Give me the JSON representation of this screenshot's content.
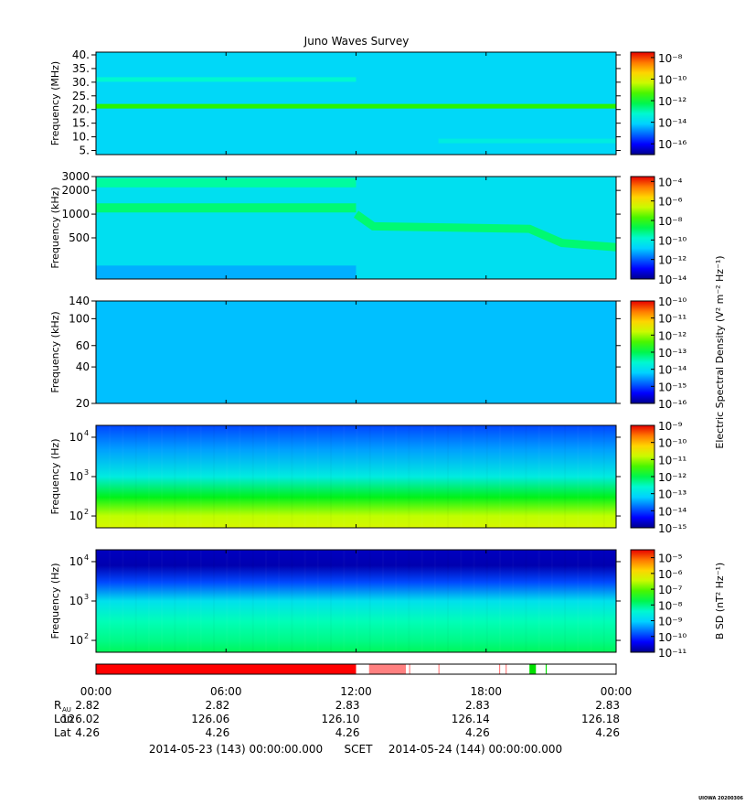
{
  "chart_data": {
    "type": "heatmap",
    "title": "Juno Waves Survey",
    "panels": [
      {
        "id": "hfrh",
        "ylabel": "Frequency (MHz)",
        "yscale": "linear",
        "ylim": [
          3.5,
          41
        ],
        "yticks": [
          "5.",
          "10.",
          "15.",
          "20.",
          "25.",
          "30.",
          "35.",
          "40."
        ],
        "colorbar": {
          "label": "",
          "scale": "log",
          "range_exp": [
            -17,
            -7.5
          ],
          "tick_exps": [
            -8,
            -10,
            -12,
            -14,
            -16
          ]
        },
        "features": [
          {
            "desc": "narrow band",
            "freq": 21.2,
            "level_exp": -11.5
          },
          {
            "desc": "band",
            "freq": 31.0,
            "level_exp": -13.2,
            "t_end": 12.0
          },
          {
            "desc": "faint band after 16:00",
            "freq": 8.5,
            "level_exp": -13.5,
            "t_start": 15.8
          }
        ],
        "background_level_exp": -14.0
      },
      {
        "id": "hfrl",
        "ylabel": "Frequency (kHz)",
        "yscale": "log",
        "ylim": [
          150,
          3000
        ],
        "yticks": [
          "500",
          "1000",
          "2000",
          "3000"
        ],
        "colorbar": {
          "label": "",
          "scale": "log",
          "range_exp": [
            -14,
            -3.5
          ],
          "tick_exps": [
            -4,
            -6,
            -8,
            -10,
            -12,
            -14
          ]
        },
        "features": [
          {
            "desc": "band",
            "freq": 2500,
            "level_exp": -9.3,
            "t_end": 12.0
          },
          {
            "desc": "band",
            "freq": 1200,
            "level_exp": -9.0,
            "t_end": 12.0
          },
          {
            "desc": "descending band",
            "freq_at_12": 1000,
            "freq_at_20": 650,
            "freq_at_24": 380,
            "level_exp": -9.0
          },
          {
            "desc": "low-frequency noise",
            "freq": 170,
            "level_exp": -11.2,
            "t_end": 12.0
          }
        ],
        "background_level_exp": -10.5
      },
      {
        "id": "lfrh",
        "ylabel": "Frequency (kHz)",
        "yscale": "log",
        "ylim": [
          20,
          140
        ],
        "yticks": [
          "20",
          "40",
          "60",
          "100",
          "140"
        ],
        "colorbar": {
          "label": "Electric Spectral Density (V² m⁻² Hz⁻¹)",
          "scale": "log",
          "range_exp": [
            -16,
            -10
          ],
          "tick_exps": [
            -10,
            -11,
            -12,
            -13,
            -14,
            -15,
            -16
          ]
        },
        "features": [],
        "background_level_exp": -14.3
      },
      {
        "id": "lfrl",
        "ylabel": "Frequency (Hz)",
        "yscale": "log",
        "ylim": [
          50,
          20000
        ],
        "yticks_exp": [
          2,
          3,
          4
        ],
        "colorbar": {
          "label": "",
          "scale": "log",
          "range_exp": [
            -15,
            -9
          ],
          "tick_exps": [
            -9,
            -10,
            -11,
            -12,
            -13,
            -14,
            -15
          ]
        },
        "profile": [
          {
            "freq": 20000,
            "level_exp": -14.0
          },
          {
            "freq": 5000,
            "level_exp": -13.5
          },
          {
            "freq": 1000,
            "level_exp": -12.8
          },
          {
            "freq": 300,
            "level_exp": -11.8
          },
          {
            "freq": 100,
            "level_exp": -10.9
          },
          {
            "freq": 50,
            "level_exp": -10.7
          }
        ]
      },
      {
        "id": "bsd",
        "ylabel": "Frequency (Hz)",
        "yscale": "log",
        "ylim": [
          50,
          20000
        ],
        "yticks_exp": [
          2,
          3,
          4
        ],
        "colorbar": {
          "label": "B SD (nT² Hz⁻¹)",
          "scale": "log",
          "range_exp": [
            -11,
            -4.5
          ],
          "tick_exps": [
            -5,
            -6,
            -7,
            -8,
            -9,
            -10,
            -11
          ]
        },
        "profile": [
          {
            "freq": 20000,
            "level_exp": -10.7
          },
          {
            "freq": 8000,
            "level_exp": -10.8
          },
          {
            "freq": 3000,
            "level_exp": -9.9
          },
          {
            "freq": 1000,
            "level_exp": -8.8
          },
          {
            "freq": 300,
            "level_exp": -8.2
          },
          {
            "freq": 100,
            "level_exp": -8.0
          },
          {
            "freq": 50,
            "level_exp": -7.8
          }
        ]
      }
    ],
    "mode_bar": [
      {
        "start": 0.0,
        "end": 12.0,
        "color": "#ff0000"
      },
      {
        "start": 12.6,
        "end": 14.3,
        "color": "#ff8080"
      },
      {
        "start": 14.45,
        "end": 14.5,
        "color": "#ff8080"
      },
      {
        "start": 15.8,
        "end": 15.85,
        "color": "#ff8080"
      },
      {
        "start": 18.6,
        "end": 18.65,
        "color": "#ff8080"
      },
      {
        "start": 18.9,
        "end": 18.95,
        "color": "#ff8080"
      },
      {
        "start": 20.0,
        "end": 20.3,
        "color": "#00e000"
      },
      {
        "start": 20.75,
        "end": 20.8,
        "color": "#00e000"
      }
    ],
    "xaxis": {
      "range_hours": [
        0,
        24
      ],
      "ticks": [
        "00:00",
        "06:00",
        "12:00",
        "18:00",
        "00:00"
      ],
      "rows": [
        {
          "label": "R",
          "sub": "AU",
          "values": [
            "2.82",
            "2.82",
            "2.83",
            "2.83",
            "2.83"
          ]
        },
        {
          "label": "Lon",
          "sub": "",
          "values": [
            "126.02",
            "126.06",
            "126.10",
            "126.14",
            "126.18"
          ]
        },
        {
          "label": "Lat",
          "sub": "",
          "values": [
            "4.26",
            "4.26",
            "4.26",
            "4.26",
            "4.26"
          ]
        }
      ]
    },
    "footer": {
      "start": "2014-05-23 (143) 00:00:00.000",
      "scet": "SCET",
      "end": "2014-05-24 (144) 00:00:00.000"
    },
    "credit": "UIOWA 20200306"
  }
}
